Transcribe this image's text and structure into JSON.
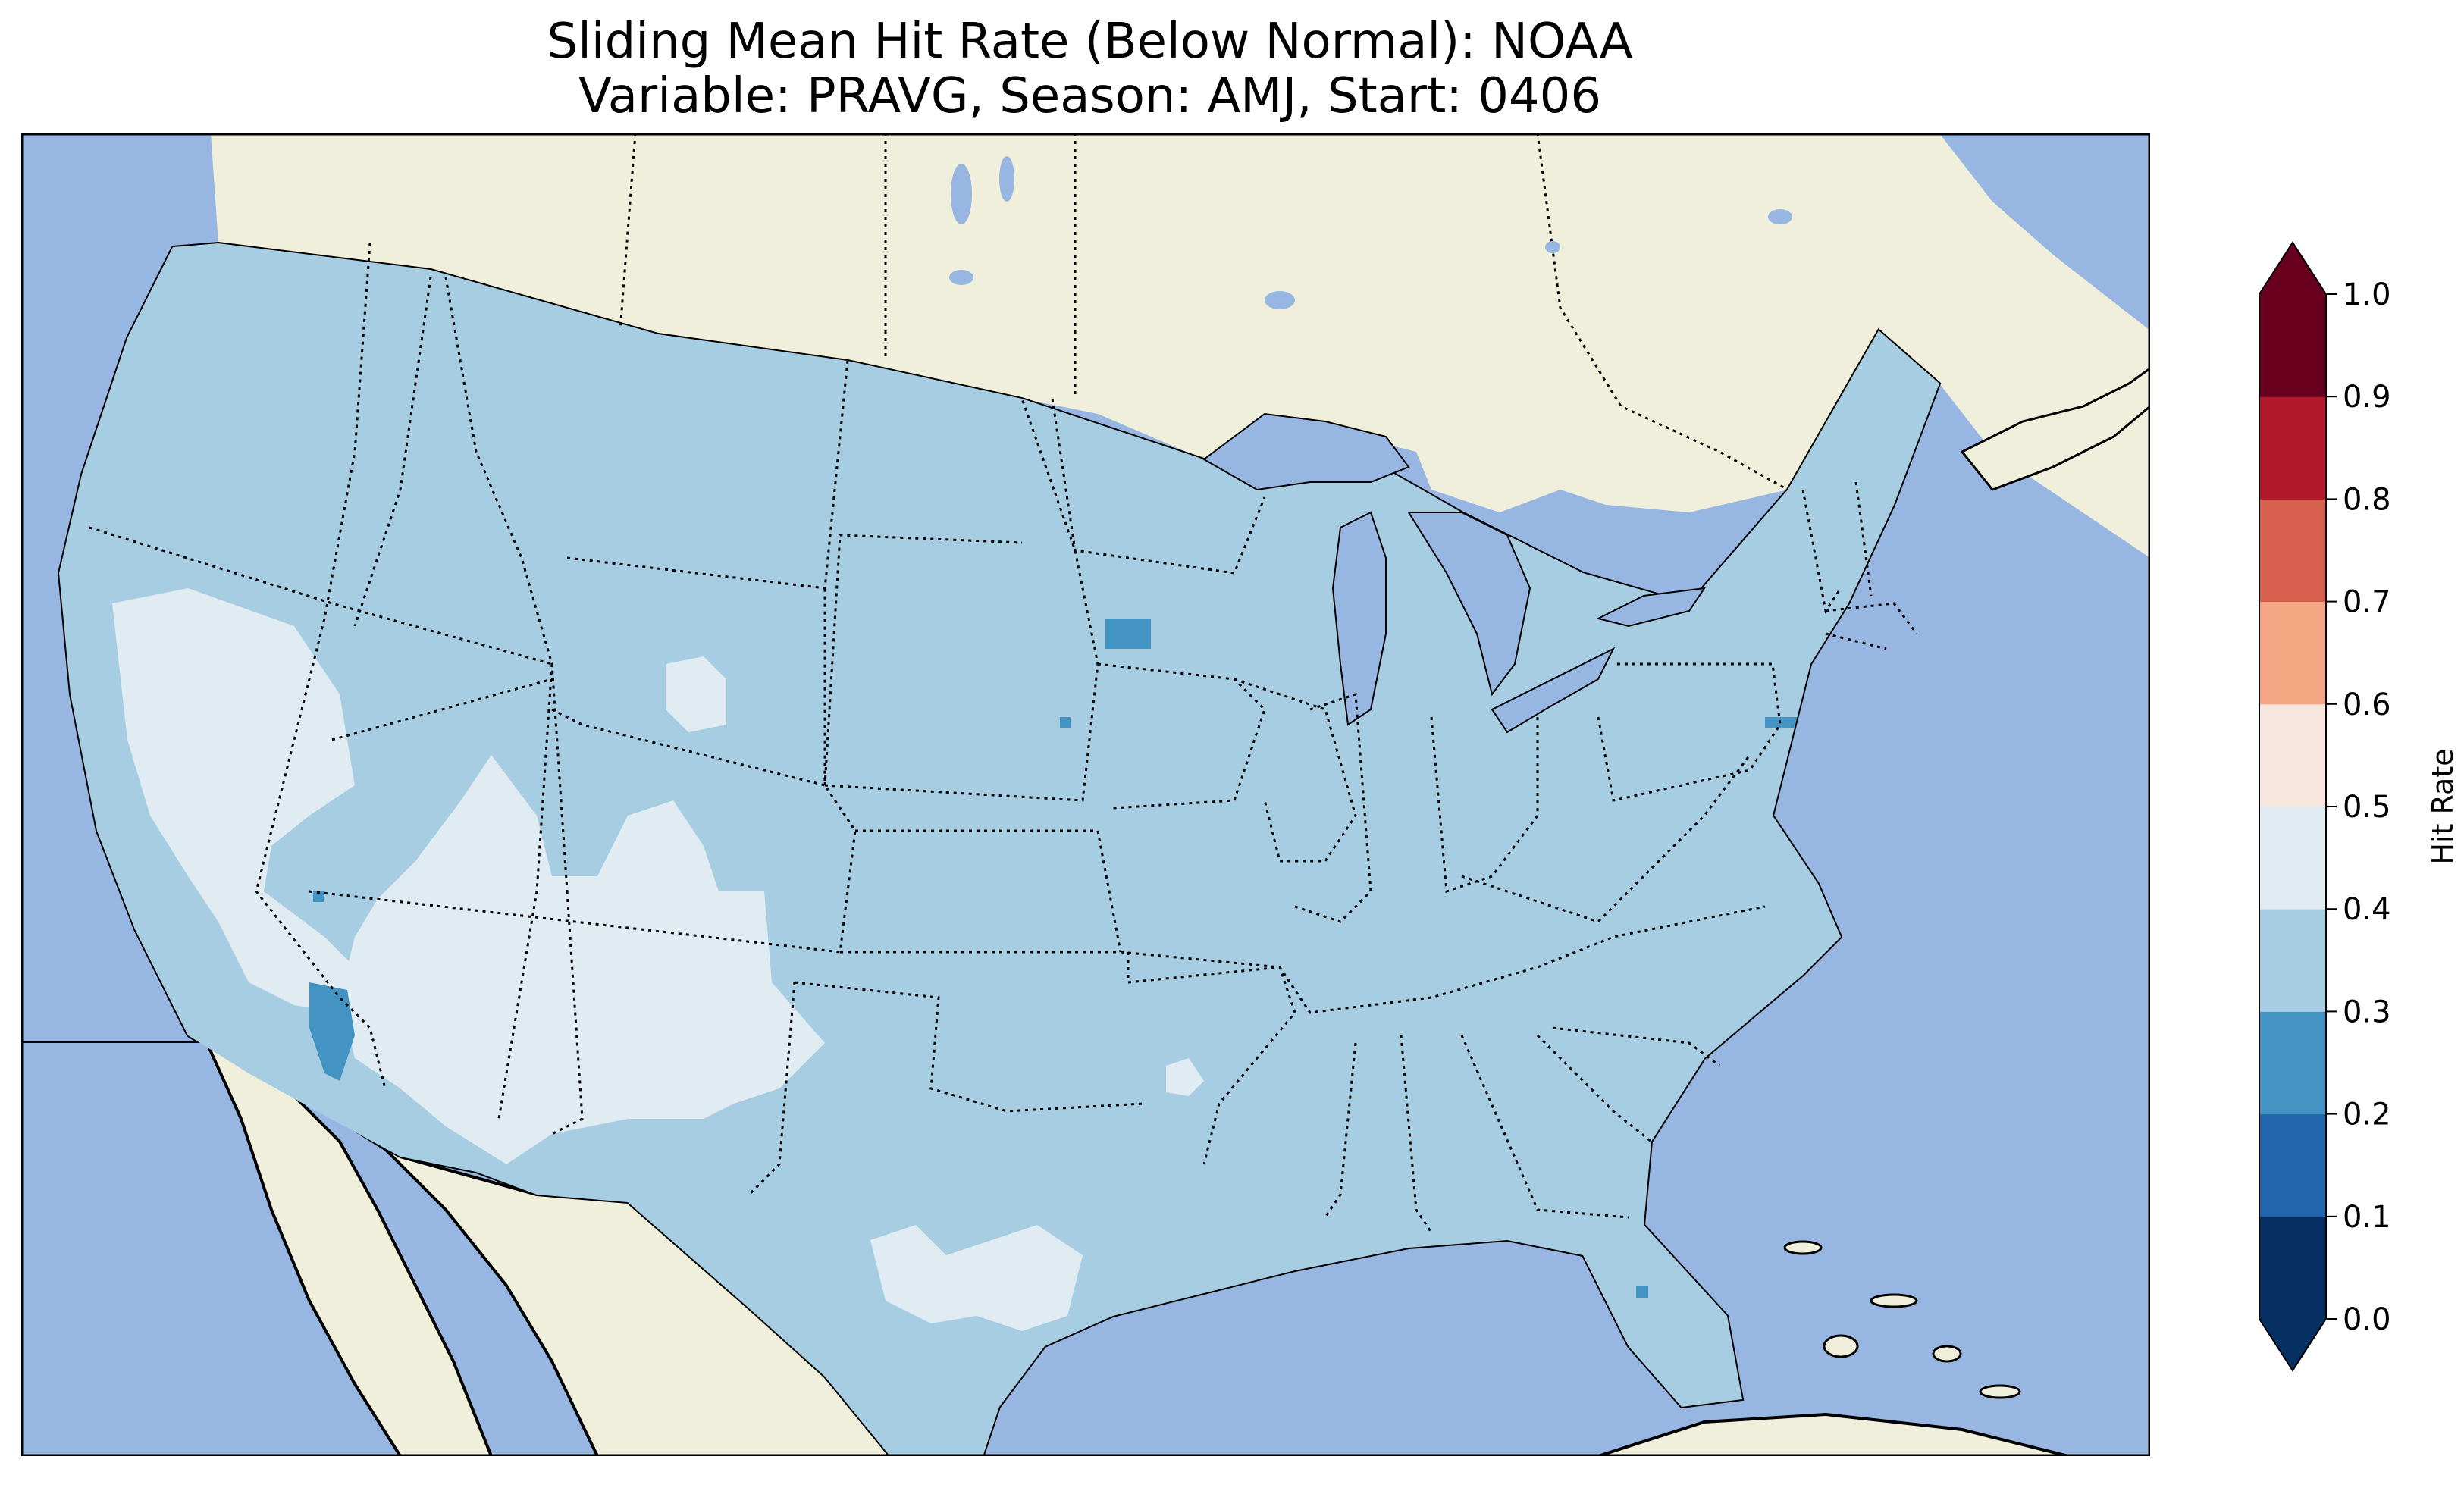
{
  "title": {
    "line1": "Sliding Mean Hit Rate (Below Normal): NOAA",
    "line2": "Variable: PRAVG, Season: AMJ, Start: 0406"
  },
  "map": {
    "colors": {
      "ocean": "#97b6e1",
      "land": "#efefdb",
      "lakes": "#97b6e1",
      "coast": "#000000"
    },
    "region": "Contiguous United States",
    "dominant_value_range": [
      0.3,
      0.4
    ],
    "higher_value_areas": [
      "Nevada",
      "Utah",
      "Arizona",
      "New Mexico",
      "western Texas",
      "eastern Wyoming"
    ],
    "lower_value_spots": [
      "southern California/Arizona border",
      "southern Minnesota",
      "New Jersey",
      "eastern Florida"
    ]
  },
  "colorbar": {
    "label": "Hit Rate",
    "ticks": [
      "0.0",
      "0.1",
      "0.2",
      "0.3",
      "0.4",
      "0.5",
      "0.6",
      "0.7",
      "0.8",
      "0.9",
      "1.0"
    ],
    "bins": [
      {
        "from": 0.0,
        "to": 0.1,
        "color": "#053061"
      },
      {
        "from": 0.1,
        "to": 0.2,
        "color": "#2166ac"
      },
      {
        "from": 0.2,
        "to": 0.3,
        "color": "#4393c3"
      },
      {
        "from": 0.3,
        "to": 0.4,
        "color": "#a7cde3"
      },
      {
        "from": 0.4,
        "to": 0.5,
        "color": "#e0ebf2"
      },
      {
        "from": 0.5,
        "to": 0.6,
        "color": "#f7e6dd"
      },
      {
        "from": 0.6,
        "to": 0.7,
        "color": "#f4a582"
      },
      {
        "from": 0.7,
        "to": 0.8,
        "color": "#d6604d"
      },
      {
        "from": 0.8,
        "to": 0.9,
        "color": "#b2182b"
      },
      {
        "from": 0.9,
        "to": 1.0,
        "color": "#67001f"
      }
    ],
    "under_color": "#053061",
    "over_color": "#67001f",
    "extend": "both"
  }
}
